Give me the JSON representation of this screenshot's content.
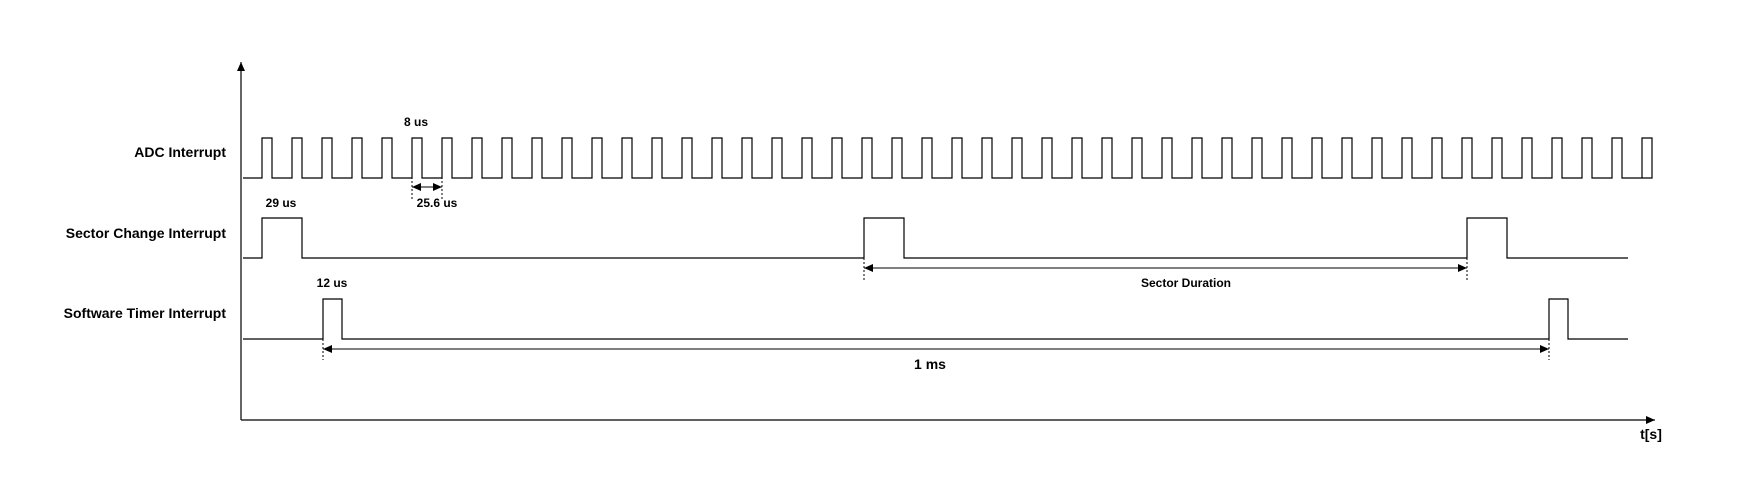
{
  "diagram": {
    "x_axis_label": "t[s]",
    "signals": [
      {
        "id": "adc",
        "label": "ADC Interrupt",
        "pulse_label": "8 us",
        "period_label": "25.6 us",
        "pulse_count": 47
      },
      {
        "id": "sector",
        "label": "Sector Change Interrupt",
        "pulse_label": "29 us",
        "interval_label": "Sector Duration"
      },
      {
        "id": "timer",
        "label": "Software Timer Interrupt",
        "pulse_label": "12 us",
        "interval_label": "1 ms"
      }
    ],
    "colors": {
      "line": "#000000",
      "background": "#ffffff"
    }
  }
}
